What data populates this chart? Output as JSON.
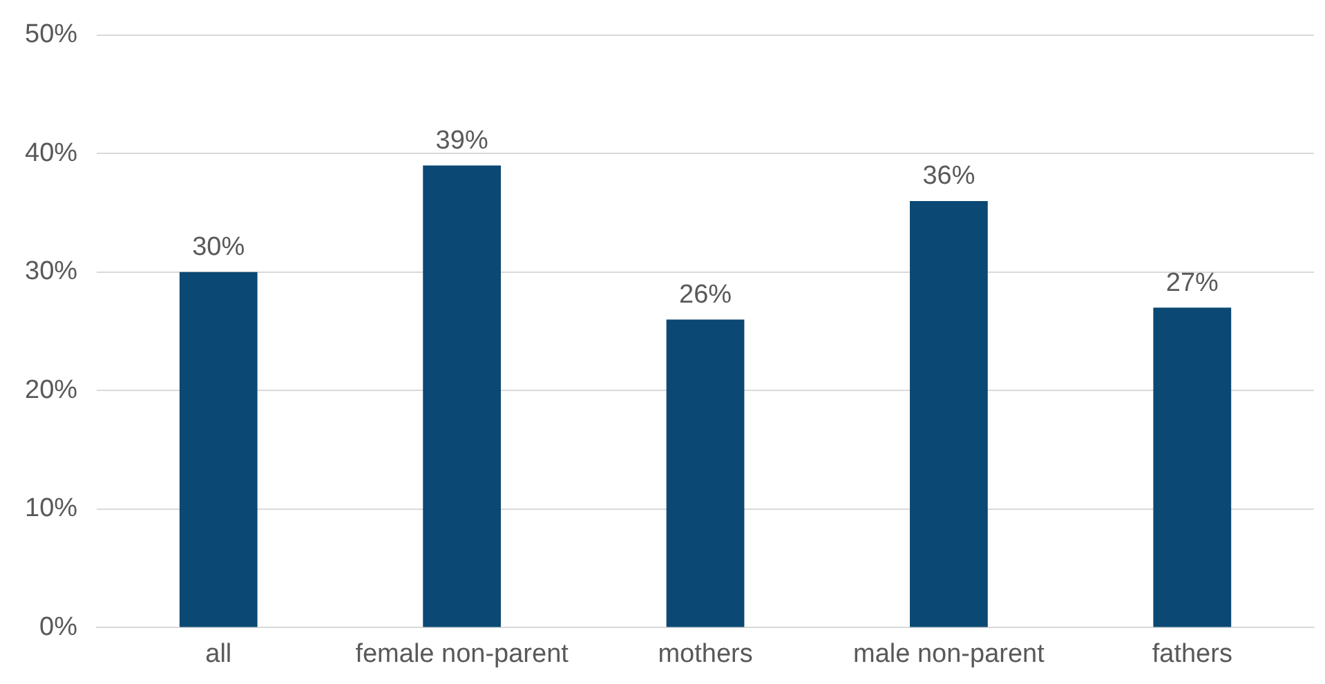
{
  "chart_data": {
    "type": "bar",
    "categories": [
      "all",
      "female non-parent",
      "mothers",
      "male non-parent",
      "fathers"
    ],
    "values": [
      30,
      39,
      26,
      36,
      27
    ],
    "value_labels": [
      "30%",
      "39%",
      "26%",
      "36%",
      "27%"
    ],
    "color": "#0b4873",
    "ylim": [
      0,
      50
    ],
    "yticks": [
      {
        "value": 0,
        "label": "0%"
      },
      {
        "value": 10,
        "label": "10%"
      },
      {
        "value": 20,
        "label": "20%"
      },
      {
        "value": 30,
        "label": "30%"
      },
      {
        "value": 40,
        "label": "40%"
      },
      {
        "value": 50,
        "label": "50%"
      }
    ],
    "grid": "y",
    "legend": false
  }
}
